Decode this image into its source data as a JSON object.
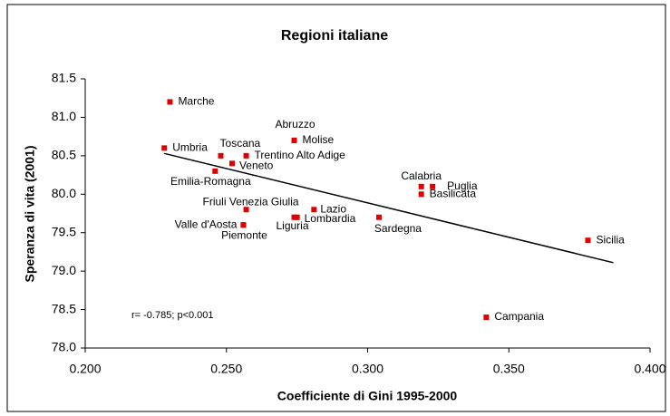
{
  "chart_data": {
    "type": "scatter",
    "title": "Regioni italiane",
    "x_label": "Coefficiente di Gini 1995-2000",
    "y_label": "Speranza di vita (2001)",
    "annotation": "r= -0.785; p<0.001",
    "point_labels": [
      "Marche",
      "Umbria",
      "Toscana",
      "Trentino Alto Adige",
      "Veneto",
      "Emilia-Romagna",
      "Abruzzo",
      "Molise",
      "Calabria",
      "Puglia",
      "Basilicata",
      "Friuli Venezia Giulia",
      "Lazio",
      "Liguria",
      "Lombardia",
      "Valle d'Aosta",
      "Piemonte",
      "Sardegna",
      "Sicilia",
      "Campania"
    ],
    "x": [
      0.23,
      0.228,
      0.248,
      0.257,
      0.252,
      0.246,
      0.274,
      0.274,
      0.319,
      0.323,
      0.319,
      0.257,
      0.281,
      0.274,
      0.275,
      0.256,
      0.256,
      0.304,
      0.378,
      0.342
    ],
    "values": [
      81.2,
      80.6,
      80.5,
      80.5,
      80.4,
      80.3,
      80.7,
      80.7,
      80.1,
      80.1,
      80.0,
      79.8,
      79.8,
      79.7,
      79.7,
      79.6,
      79.6,
      79.7,
      79.4,
      78.4
    ],
    "color": "#e00000",
    "trend": {
      "x": [
        0.228,
        0.387
      ],
      "values": [
        80.53,
        79.11
      ],
      "color": "#000000"
    },
    "xlim": [
      0.2,
      0.4
    ],
    "xticks": [
      {
        "value": 0.2,
        "label": "0.200"
      },
      {
        "value": 0.25,
        "label": "0.250"
      },
      {
        "value": 0.3,
        "label": "0.300"
      },
      {
        "value": 0.35,
        "label": "0.350"
      },
      {
        "value": 0.4,
        "label": "0.400"
      }
    ],
    "ylim": [
      78,
      81.5
    ],
    "yticks": [
      {
        "value": 78,
        "label": "78.0"
      },
      78.5,
      {
        "value": 79,
        "label": "79.0"
      },
      79.5,
      {
        "value": 80,
        "label": "80.0"
      },
      80.5,
      {
        "value": 81,
        "label": "81.0"
      },
      81.5
    ],
    "grid": false
  }
}
